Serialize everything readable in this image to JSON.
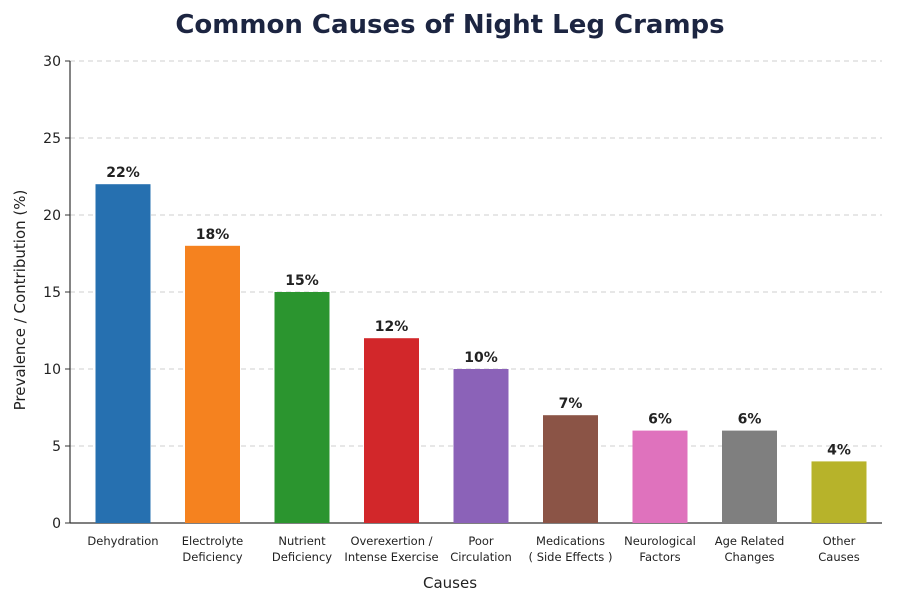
{
  "chart_data": {
    "type": "bar",
    "title": "Common Causes of Night Leg Cramps",
    "xlabel": "Causes",
    "ylabel": "Prevalence / Contribution (%)",
    "ylim": [
      0,
      30
    ],
    "yticks": [
      0,
      5,
      10,
      15,
      20,
      25,
      30
    ],
    "grid": "horizontal dashed",
    "categories": [
      [
        "Dehydration"
      ],
      [
        "Electrolyte",
        "Deficiency"
      ],
      [
        "Nutrient",
        "Deficiency"
      ],
      [
        "Overexertion /",
        "Intense Exercise"
      ],
      [
        "Poor",
        "Circulation"
      ],
      [
        "Medications",
        "( Side Effects )"
      ],
      [
        "Neurological",
        "Factors"
      ],
      [
        "Age Related",
        "Changes"
      ],
      [
        "Other",
        "Causes"
      ]
    ],
    "values": [
      22,
      18,
      15,
      12,
      10,
      7,
      6,
      6,
      4
    ],
    "data_labels": [
      "22%",
      "18%",
      "15%",
      "12%",
      "10%",
      "7%",
      "6%",
      "6%",
      "4%"
    ],
    "colors": [
      "#2670b0",
      "#f5821f",
      "#2b952f",
      "#d2272a",
      "#8b62b8",
      "#8b5446",
      "#df72bd",
      "#7f7f7f",
      "#b7b32a"
    ]
  }
}
